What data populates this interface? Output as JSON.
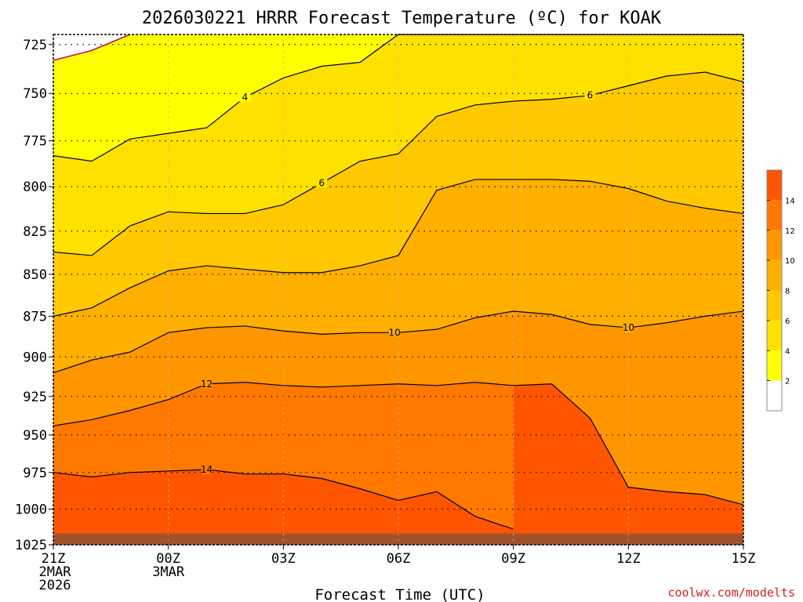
{
  "chart_data": {
    "type": "heatmap",
    "title": "2026030221 HRRR Forecast Temperature (ºC) for KOAK",
    "xlabel": "Forecast Time (UTC)",
    "ylabel": "",
    "credit": "coolwx.com/modelts",
    "x_hours": [
      0,
      1,
      2,
      3,
      4,
      5,
      6,
      7,
      8,
      9,
      10,
      11,
      12,
      13,
      14,
      15,
      16,
      17,
      18
    ],
    "xlim": [
      0,
      18
    ],
    "x_ticks": [
      {
        "hour": 0,
        "lines": [
          "21Z",
          "2MAR",
          "2026"
        ]
      },
      {
        "hour": 3,
        "lines": [
          "00Z",
          "3MAR"
        ]
      },
      {
        "hour": 6,
        "lines": [
          "03Z"
        ]
      },
      {
        "hour": 9,
        "lines": [
          "06Z"
        ]
      },
      {
        "hour": 12,
        "lines": [
          "09Z"
        ]
      },
      {
        "hour": 15,
        "lines": [
          "12Z"
        ]
      },
      {
        "hour": 18,
        "lines": [
          "15Z"
        ]
      }
    ],
    "y_axis": {
      "scale": "log-pressure",
      "reversed": true,
      "ylim": [
        1025,
        720
      ],
      "unit": "hPa"
    },
    "y_ticks": [
      "725",
      "750",
      "775",
      "800",
      "825",
      "850",
      "875",
      "900",
      "925",
      "950",
      "975",
      "1000",
      "1025"
    ],
    "grid": true,
    "contour_levels": [
      2,
      4,
      6,
      8,
      10,
      12,
      14
    ],
    "contour_labels": [
      "4",
      "6",
      "6",
      "10",
      "10",
      "12",
      "14"
    ],
    "contours": [
      {
        "level": 2,
        "pressures": [
          733,
          728,
          720,
          null,
          null,
          null,
          null,
          null,
          null,
          null,
          null,
          null,
          null,
          null,
          null,
          null,
          null,
          null,
          null
        ]
      },
      {
        "level": 4,
        "pressures": [
          783,
          786,
          774,
          771,
          768,
          752,
          742,
          736,
          734,
          720,
          720,
          720,
          720,
          720,
          720,
          720,
          720,
          720,
          720
        ]
      },
      {
        "level": 6,
        "pressures": [
          837,
          839,
          822,
          814,
          815,
          815,
          810,
          798,
          786,
          782,
          762,
          756,
          754,
          753,
          751,
          746,
          741,
          739,
          744
        ]
      },
      {
        "level": 8,
        "pressures": [
          875,
          870,
          858,
          848,
          845,
          847,
          849,
          849,
          845,
          839,
          802,
          796,
          796,
          796,
          797,
          801,
          808,
          812,
          815
        ]
      },
      {
        "level": 10,
        "pressures": [
          910,
          902,
          897,
          885,
          882,
          881,
          884,
          886,
          885,
          885,
          883,
          876,
          872,
          874,
          880,
          882,
          879,
          875,
          872
        ]
      },
      {
        "level": 12,
        "pressures": [
          944,
          940,
          934,
          927,
          917,
          916,
          918,
          919,
          918,
          917,
          918,
          916,
          918,
          917,
          939,
          985,
          988,
          990,
          997
        ]
      },
      {
        "level": 14,
        "pressures": [
          975,
          978,
          975,
          974,
          973,
          976,
          976,
          979,
          986,
          994,
          988,
          1005,
          1014,
          null,
          null,
          null,
          null,
          null,
          null
        ]
      }
    ],
    "series": [
      {
        "name": "2",
        "color": "#FFFFFF"
      },
      {
        "name": "4",
        "color": "#FFFF00"
      },
      {
        "name": "6",
        "color": "#FFE100"
      },
      {
        "name": "8",
        "color": "#FFC800"
      },
      {
        "name": "10",
        "color": "#FFAF00"
      },
      {
        "name": "12",
        "color": "#FF9600"
      },
      {
        "name": "14",
        "color": "#FF7800"
      }
    ],
    "extra_colors": {
      "above_14": "#FF5500",
      "surface": "#A0522D",
      "contour_2": "#C01060"
    },
    "colorbar_labels": [
      "14",
      "12",
      "10",
      "8",
      "6",
      "4",
      "2"
    ],
    "colorbar_colors": [
      "#FF5500",
      "#FF7800",
      "#FF9600",
      "#FFAF00",
      "#FFC800",
      "#FFE100",
      "#FFFF00",
      "#FFFFFF"
    ]
  }
}
